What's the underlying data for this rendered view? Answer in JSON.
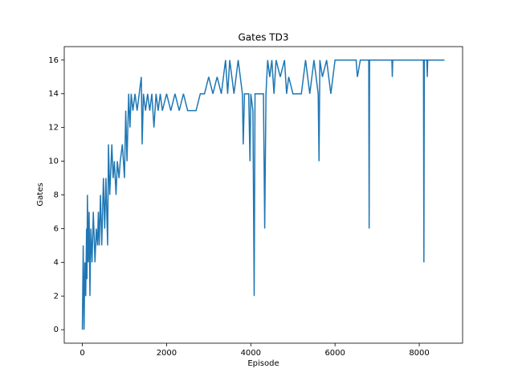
{
  "chart_data": {
    "type": "line",
    "title": "Gates TD3",
    "x_label": "Episode",
    "y_label": "Gates",
    "series": [
      {
        "name": "Gates",
        "color": "#1f77b4",
        "x": [
          0,
          20,
          40,
          60,
          80,
          100,
          110,
          120,
          140,
          160,
          180,
          200,
          230,
          260,
          300,
          330,
          360,
          380,
          400,
          430,
          460,
          500,
          530,
          560,
          600,
          620,
          650,
          700,
          730,
          760,
          800,
          830,
          870,
          900,
          950,
          1000,
          1030,
          1060,
          1100,
          1130,
          1160,
          1200,
          1250,
          1300,
          1350,
          1400,
          1420,
          1450,
          1500,
          1550,
          1600,
          1650,
          1700,
          1750,
          1800,
          1850,
          1900,
          2000,
          2100,
          2200,
          2300,
          2400,
          2500,
          2600,
          2700,
          2800,
          2900,
          3000,
          3100,
          3200,
          3300,
          3400,
          3450,
          3500,
          3600,
          3700,
          3750,
          3800,
          3820,
          3850,
          3950,
          3980,
          4000,
          4050,
          4080,
          4100,
          4300,
          4330,
          4360,
          4400,
          4450,
          4500,
          4550,
          4600,
          4700,
          4800,
          4850,
          4900,
          5000,
          5200,
          5300,
          5400,
          5500,
          5600,
          5620,
          5640,
          5700,
          5800,
          5900,
          6000,
          6500,
          6530,
          6600,
          6800,
          6810,
          6820,
          7350,
          7360,
          7370,
          8100,
          8110,
          8120,
          8180,
          8190,
          8200,
          8599
        ],
        "values": [
          0,
          5,
          0,
          4,
          2,
          6,
          3,
          8,
          4,
          7,
          2,
          6,
          4,
          7,
          4,
          6,
          5,
          7,
          5,
          8,
          5,
          9,
          6,
          9,
          5,
          11,
          8,
          11,
          9,
          10,
          8,
          10,
          9,
          10,
          11,
          9,
          13,
          10,
          14,
          12,
          14,
          13,
          14,
          13,
          14,
          15,
          11,
          14,
          13,
          14,
          13,
          14,
          12,
          14,
          13,
          14,
          13,
          14,
          13,
          14,
          13,
          14,
          13,
          13,
          13,
          14,
          14,
          15,
          14,
          15,
          14,
          16,
          14,
          16,
          14,
          16,
          15,
          14,
          11,
          14,
          14,
          10,
          14,
          13,
          2,
          14,
          14,
          6,
          14,
          16,
          15,
          16,
          14,
          16,
          15,
          16,
          14,
          15,
          14,
          14,
          16,
          14,
          16,
          14,
          10,
          16,
          15,
          16,
          14,
          16,
          16,
          15,
          16,
          16,
          6,
          16,
          16,
          15,
          16,
          16,
          4,
          16,
          16,
          15,
          16,
          16
        ]
      }
    ],
    "xlim": [
      -430,
      9029
    ],
    "ylim": [
      -0.8,
      16.8
    ],
    "xticks": [
      0,
      2000,
      4000,
      6000,
      8000
    ],
    "yticks": [
      0,
      2,
      4,
      6,
      8,
      10,
      12,
      14,
      16
    ]
  }
}
